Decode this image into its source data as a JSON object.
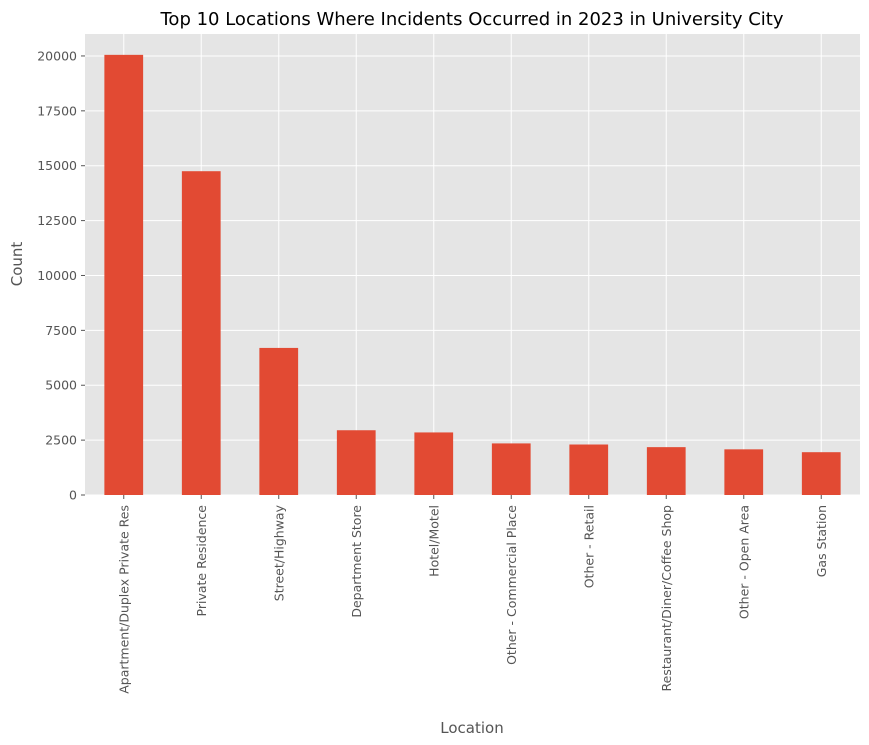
{
  "chart_data": {
    "type": "bar",
    "title": "Top 10 Locations Where Incidents Occurred in 2023 in University City",
    "xlabel": "Location",
    "ylabel": "Count",
    "categories": [
      "Apartment/Duplex Private Res",
      "Private Residence",
      "Street/Highway",
      "Department Store",
      "Hotel/Motel",
      "Other - Commercial Place",
      "Other - Retail",
      "Restaurant/Diner/Coffee Shop",
      "Other - Open Area",
      "Gas Station"
    ],
    "values": [
      20050,
      14750,
      6700,
      2950,
      2850,
      2350,
      2300,
      2180,
      2080,
      1950
    ],
    "ylim": [
      0,
      21000
    ],
    "yticks": [
      0,
      2500,
      5000,
      7500,
      10000,
      12500,
      15000,
      17500,
      20000
    ],
    "grid": true,
    "bar_color": "#E24A33",
    "plot_background": "#E5E5E5",
    "grid_color": "#FFFFFF"
  }
}
